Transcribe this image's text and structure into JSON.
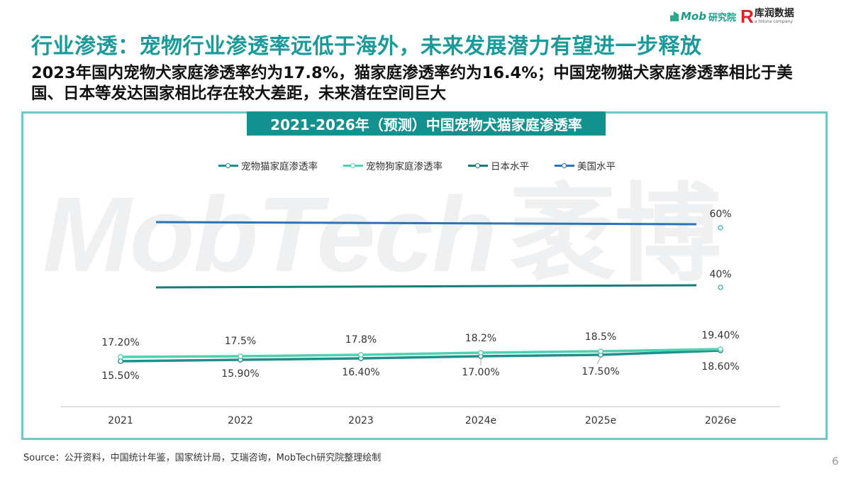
{
  "header": {
    "brand_mob": "Mob研究院",
    "brand_mob_prefix": "Mob",
    "brand_mob_suffix": "研究院",
    "brand_r_mark": "R",
    "brand_r_name": "库润数据",
    "brand_r_tagline": "a toluna company"
  },
  "title": "行业渗透：宠物行业渗透率远低于海外，未来发展潜力有望进一步释放",
  "subtitle": "2023年国内宠物犬家庭渗透率约为17.8%，猫家庭渗透率约为16.4%；中国宠物猫犬家庭渗透率相比于美国、日本等发达国家相比存在较大差距，未来潜在空间巨大",
  "watermark": {
    "latin": "MobTech",
    "cn": "袤博"
  },
  "footer": {
    "source": "Source：公开资料，中国统计年鉴，国家统计局，艾瑞咨询，MobTech研究院整理绘制",
    "page_number": "6"
  },
  "colors": {
    "title": "#1a9a9a",
    "frame": "#72c7c8",
    "chart_title_bg": "#12918f",
    "cat_line": "#1f8f8c",
    "dog_line": "#4fd1b0",
    "japan_line": "#177a78",
    "us_line": "#2a73b5"
  },
  "chart_data": {
    "type": "line",
    "title": "2021-2026年（预测）中国宠物犬猫家庭渗透率",
    "categories": [
      "2021",
      "2022",
      "2023",
      "2024e",
      "2025e",
      "2026e"
    ],
    "xlabel": "",
    "ylabel": "",
    "legend_position": "top",
    "grid": false,
    "series": [
      {
        "name": "宠物猫家庭渗透率",
        "values": [
          15.5,
          15.9,
          16.4,
          17.0,
          17.5,
          18.6
        ],
        "labels": [
          "15.50%",
          "15.90%",
          "16.40%",
          "17.00%",
          "17.50%",
          "18.60%"
        ],
        "color": "#1f8f8c"
      },
      {
        "name": "宠物狗家庭渗透率",
        "values": [
          17.2,
          17.5,
          17.8,
          18.2,
          18.5,
          19.4
        ],
        "labels": [
          "17.20%",
          "17.5%",
          "17.8%",
          "18.2%",
          "18.5%",
          "19.40%"
        ],
        "color": "#4fd1b0"
      },
      {
        "name": "日本水平",
        "values": [
          40,
          40,
          40,
          40,
          40,
          40
        ],
        "labels": [
          "",
          "",
          "",
          "",
          "",
          "40%"
        ],
        "color": "#177a78"
      },
      {
        "name": "美国水平",
        "values": [
          60,
          60,
          60,
          60,
          60,
          60
        ],
        "labels": [
          "",
          "",
          "",
          "",
          "",
          "60%"
        ],
        "color": "#2a73b5"
      }
    ]
  }
}
